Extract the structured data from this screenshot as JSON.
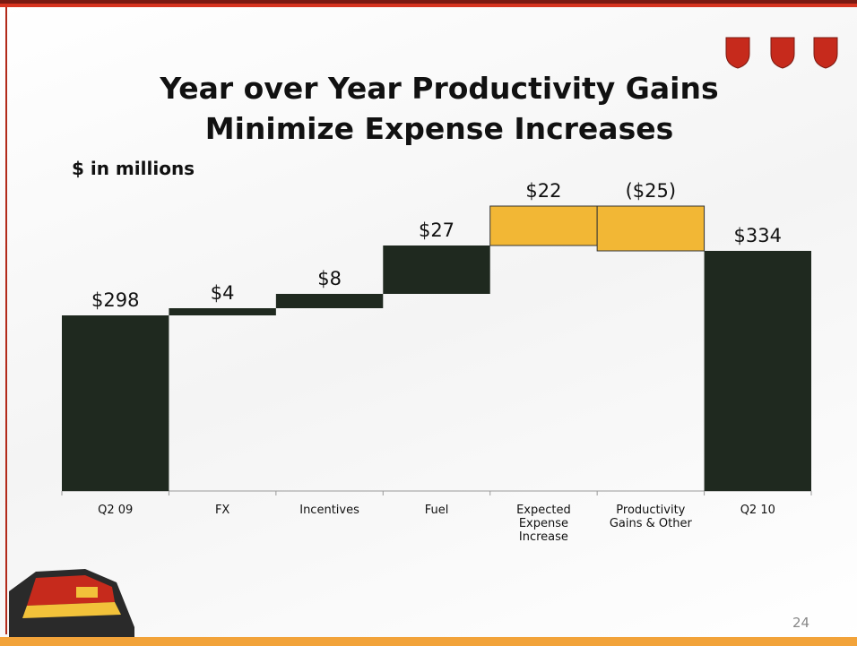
{
  "chart_data": {
    "type": "waterfall",
    "title": "Year over Year Productivity Gains Minimize Expense Increases",
    "subtitle": "$ in millions",
    "categories": [
      "Q2 09",
      "FX",
      "Incentives",
      "Fuel",
      "Expected Expense Increase",
      "Productivity Gains & Other",
      "Q2 10"
    ],
    "values": [
      298,
      4,
      8,
      27,
      22,
      -25,
      334
    ],
    "value_labels": [
      "$298",
      "$4",
      "$8",
      "$27",
      "$22",
      "($25)",
      "$334"
    ],
    "colors": [
      "#1f291f",
      "#1f291f",
      "#1f291f",
      "#1f291f",
      "#f2b735",
      "#f2b735",
      "#1f291f"
    ],
    "ylim": [
      200,
      370
    ]
  },
  "page_number": "24"
}
